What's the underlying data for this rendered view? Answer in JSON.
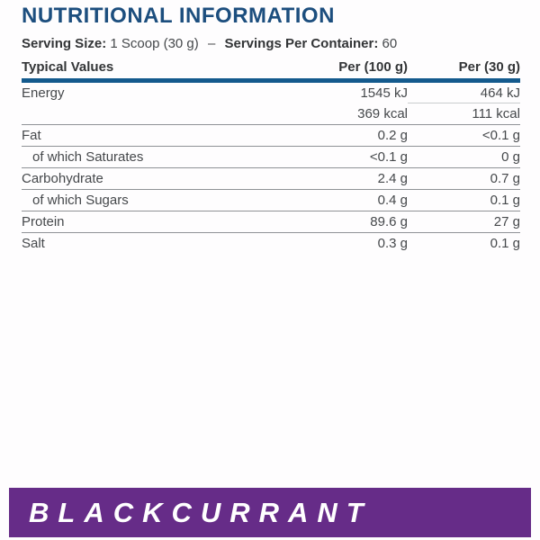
{
  "title": "NUTRITIONAL INFORMATION",
  "serving": {
    "size_label": "Serving Size:",
    "size_value": "1 Scoop (30 g)",
    "separator": "–",
    "container_label": "Servings Per Container:",
    "container_value": "60"
  },
  "table": {
    "headers": [
      "Typical Values",
      "Per (100 g)",
      "Per (30 g)"
    ],
    "rows": [
      {
        "label": "Energy",
        "per100": "1545 kJ",
        "per30": "464 kJ"
      },
      {
        "label": "",
        "per100": "369 kcal",
        "per30": "111 kcal"
      },
      {
        "label": "Fat",
        "per100": "0.2 g",
        "per30": "<0.1 g"
      },
      {
        "label": "of which Saturates",
        "per100": "<0.1 g",
        "per30": "0 g"
      },
      {
        "label": "Carbohydrate",
        "per100": "2.4 g",
        "per30": "0.7 g"
      },
      {
        "label": "of which Sugars",
        "per100": "0.4 g",
        "per30": "0.1 g"
      },
      {
        "label": "Protein",
        "per100": "89.6 g",
        "per30": "27 g"
      },
      {
        "label": "Salt",
        "per100": "0.3 g",
        "per30": "0.1 g"
      }
    ]
  },
  "flavor_banner": {
    "label": "BLACKCURRANT"
  },
  "colors": {
    "title_blue": "#1c4e7e",
    "rule_blue": "#145a8d",
    "text": "#45484b",
    "strong_text": "#333537",
    "line_gray": "#8f9296",
    "banner_purple": "#662c88",
    "banner_text": "#ffffff"
  }
}
